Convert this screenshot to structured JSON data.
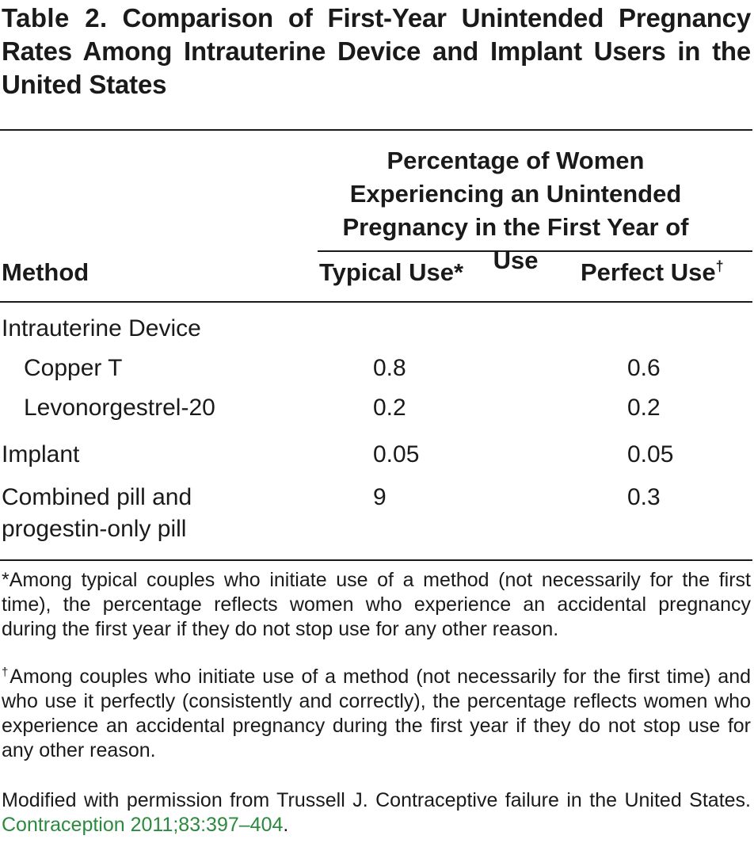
{
  "title": {
    "label": "Table 2.",
    "text": "Comparison of First-Year Unintended Pregnancy Rates Among Intrauterine Device and Implant Users in the United States"
  },
  "header": {
    "group": "Percentage of Women Experiencing an Unintended Pregnancy in the First Year of Use",
    "method": "Method",
    "typical": "Typical Use*",
    "perfect": "Perfect Use",
    "perfect_mark": "†"
  },
  "rows": [
    {
      "method": "Intrauterine Device",
      "typical": "",
      "perfect": ""
    },
    {
      "method": "Copper T",
      "typical": "0.8",
      "perfect": "0.6"
    },
    {
      "method": "Levonorgestrel-20",
      "typical": "0.2",
      "perfect": "0.2"
    },
    {
      "method": "Implant",
      "typical": "0.05",
      "perfect": "0.05"
    },
    {
      "method": "Combined pill and progestin-only pill",
      "typical": "9",
      "perfect": "0.3"
    }
  ],
  "footnotes": {
    "typical": "*Among typical couples who initiate use of a method (not necessarily for the first time), the percentage reflects women who experience an accidental pregnancy during the first year if they do not stop use for any other reason.",
    "perfect_mark": "†",
    "perfect": "Among couples who initiate use of a method (not necessarily for the first time) and who use it perfectly (consistently and correctly), the percentage reflects women who experience an accidental pregnancy during the first year if they do not stop use for any other reason.",
    "source": "Modified with permission from Trussell J. Contraceptive failure in the United States.",
    "citation": "Contraception 2011;83:397–404",
    "citation_end": "."
  },
  "colors": {
    "text": "#1a1a1a",
    "link": "#2b8a3e",
    "background": "#ffffff"
  }
}
